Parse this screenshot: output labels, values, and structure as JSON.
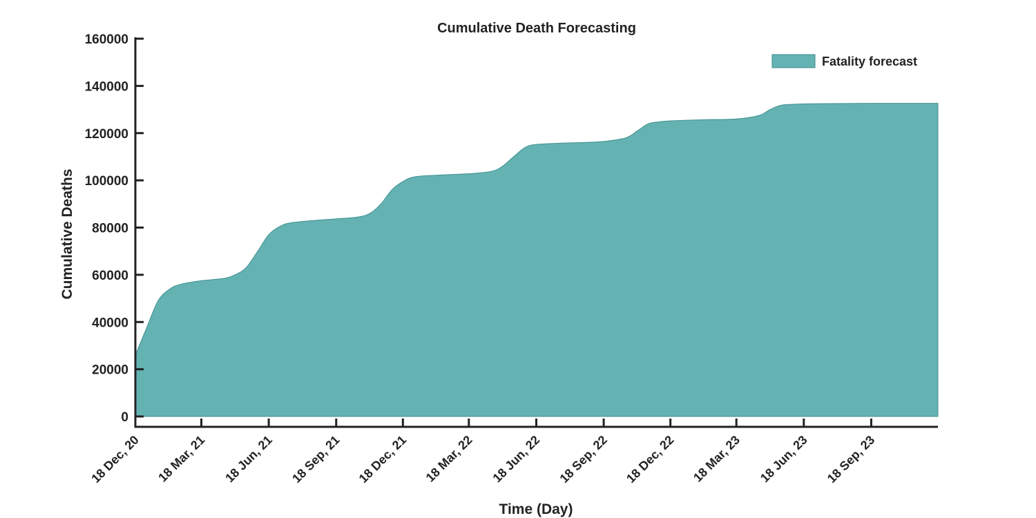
{
  "chart_data": {
    "type": "area",
    "title": "Cumulative Death Forecasting",
    "xlabel": "Time (Day)",
    "ylabel": "Cumulative Deaths",
    "ylim": [
      0,
      160000
    ],
    "yticks": [
      0,
      20000,
      40000,
      60000,
      80000,
      100000,
      120000,
      140000,
      160000
    ],
    "xlim": [
      "2020-12-18",
      "2023-12-18"
    ],
    "xticks": [
      {
        "date": "2020-12-18",
        "label": "18 Dec, 20"
      },
      {
        "date": "2021-03-18",
        "label": "18 Mar, 21"
      },
      {
        "date": "2021-06-18",
        "label": "18 Jun, 21"
      },
      {
        "date": "2021-09-18",
        "label": "18 Sep, 21"
      },
      {
        "date": "2021-12-18",
        "label": "18 Dec, 21"
      },
      {
        "date": "2022-03-18",
        "label": "18 Mar, 22"
      },
      {
        "date": "2022-06-18",
        "label": "18 Jun, 22"
      },
      {
        "date": "2022-09-18",
        "label": "18 Sep, 22"
      },
      {
        "date": "2022-12-18",
        "label": "18 Dec, 22"
      },
      {
        "date": "2023-03-18",
        "label": "18 Mar, 23"
      },
      {
        "date": "2023-06-18",
        "label": "18 Jun, 23"
      },
      {
        "date": "2023-09-18",
        "label": "18 Sep, 23"
      }
    ],
    "legend": {
      "placement": "top-right"
    },
    "grid": false,
    "series": [
      {
        "name": "Fatality forecast",
        "color": "#65b2b3",
        "edge_color": "#3f8f90",
        "x": [
          "2020-12-18",
          "2021-01-03",
          "2021-01-18",
          "2021-02-03",
          "2021-02-18",
          "2021-03-18",
          "2021-04-18",
          "2021-05-03",
          "2021-05-18",
          "2021-06-03",
          "2021-06-18",
          "2021-07-03",
          "2021-07-18",
          "2021-08-18",
          "2021-09-18",
          "2021-10-18",
          "2021-11-03",
          "2021-11-18",
          "2021-12-03",
          "2021-12-18",
          "2022-01-03",
          "2022-02-03",
          "2022-03-18",
          "2022-04-18",
          "2022-05-03",
          "2022-05-18",
          "2022-06-03",
          "2022-06-18",
          "2022-07-18",
          "2022-08-18",
          "2022-09-18",
          "2022-10-18",
          "2022-11-03",
          "2022-11-18",
          "2022-12-03",
          "2022-12-18",
          "2023-02-03",
          "2023-03-18",
          "2023-04-18",
          "2023-05-03",
          "2023-05-18",
          "2023-06-03",
          "2023-06-18",
          "2023-07-18",
          "2023-09-18",
          "2023-11-18",
          "2023-12-18"
        ],
        "values": [
          26000,
          38000,
          49000,
          54000,
          56000,
          57500,
          58500,
          60000,
          63000,
          70000,
          77000,
          80500,
          82000,
          83000,
          83700,
          84500,
          86000,
          90000,
          96000,
          99500,
          101500,
          102200,
          102800,
          103800,
          106000,
          110000,
          114000,
          115200,
          115700,
          116000,
          116500,
          118000,
          121000,
          124000,
          124800,
          125200,
          125700,
          126000,
          127500,
          130000,
          131800,
          132200,
          132400,
          132500,
          132600,
          132600,
          132600
        ]
      }
    ]
  }
}
